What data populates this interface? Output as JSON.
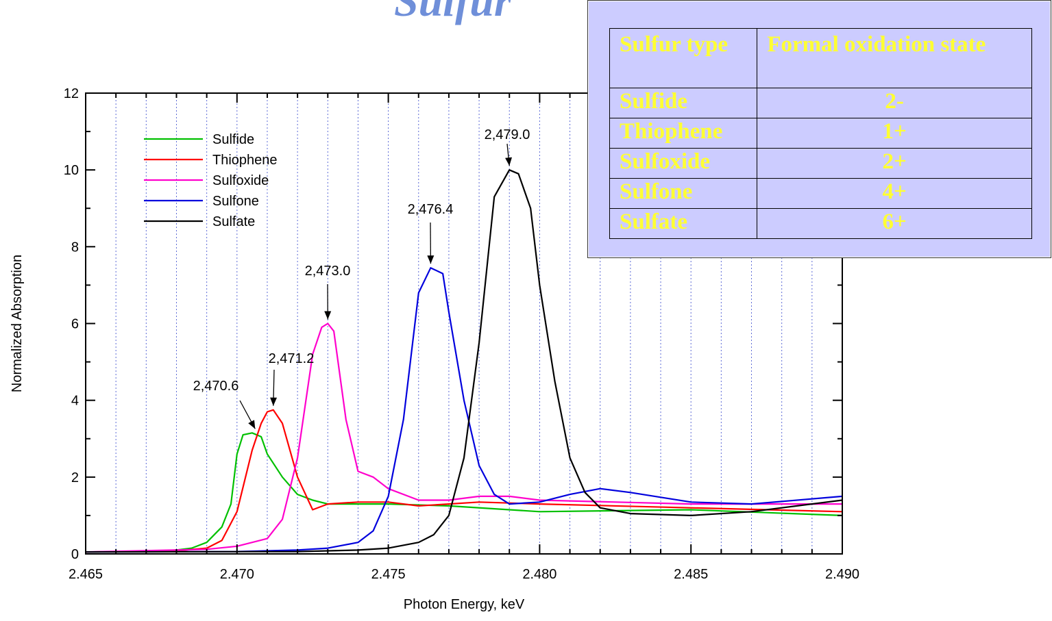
{
  "page_title": "Sulfur",
  "table": {
    "headers": [
      "Sulfur type",
      "Formal oxidation state"
    ],
    "rows": [
      {
        "type": "Sulfide",
        "state": "2-"
      },
      {
        "type": "Thiophene",
        "state": "1+"
      },
      {
        "type": "Sulfoxide",
        "state": "2+"
      },
      {
        "type": "Sulfone",
        "state": "4+"
      },
      {
        "type": "Sulfate",
        "state": "6+"
      }
    ],
    "text_color": "#ffff33",
    "background": "#ccccff"
  },
  "chart_data": {
    "type": "line",
    "xlabel": "Photon Energy, keV",
    "ylabel": "Normalized Absorption",
    "xlim": [
      2.465,
      2.49
    ],
    "ylim": [
      0,
      12
    ],
    "xticks": [
      "2.465",
      "2.470",
      "2.475",
      "2.480",
      "2.485",
      "2.490"
    ],
    "yticks": [
      "0",
      "2",
      "4",
      "6",
      "8",
      "10",
      "12"
    ],
    "grid": "vertical dotted every 0.001",
    "legend_position": "top-left",
    "series": [
      {
        "name": "Sulfide",
        "color": "#00c000",
        "x": [
          2.465,
          2.467,
          2.468,
          2.4685,
          2.469,
          2.4695,
          2.4698,
          2.47,
          2.4702,
          2.4705,
          2.4708,
          2.471,
          2.4715,
          2.472,
          2.4725,
          2.473,
          2.475,
          2.477,
          2.48,
          2.485,
          2.49
        ],
        "y": [
          0.05,
          0.07,
          0.1,
          0.15,
          0.3,
          0.7,
          1.3,
          2.6,
          3.1,
          3.15,
          3.05,
          2.6,
          2.0,
          1.55,
          1.4,
          1.3,
          1.3,
          1.25,
          1.1,
          1.15,
          1.0
        ]
      },
      {
        "name": "Thiophene",
        "color": "#ff0000",
        "x": [
          2.465,
          2.468,
          2.469,
          2.4695,
          2.47,
          2.4705,
          2.4708,
          2.471,
          2.4712,
          2.4715,
          2.472,
          2.4725,
          2.473,
          2.474,
          2.475,
          2.476,
          2.477,
          2.478,
          2.48,
          2.485,
          2.49
        ],
        "y": [
          0.05,
          0.08,
          0.15,
          0.35,
          1.1,
          2.7,
          3.4,
          3.7,
          3.75,
          3.4,
          2.0,
          1.15,
          1.3,
          1.35,
          1.35,
          1.25,
          1.3,
          1.35,
          1.3,
          1.2,
          1.1
        ]
      },
      {
        "name": "Sulfoxide",
        "color": "#ff00cc",
        "x": [
          2.465,
          2.469,
          2.47,
          2.471,
          2.4715,
          2.472,
          2.4725,
          2.4728,
          2.473,
          2.4732,
          2.4736,
          2.474,
          2.4745,
          2.475,
          2.476,
          2.477,
          2.478,
          2.479,
          2.48,
          2.485,
          2.49
        ],
        "y": [
          0.05,
          0.12,
          0.2,
          0.4,
          0.9,
          2.5,
          5.2,
          5.9,
          6.0,
          5.8,
          3.5,
          2.15,
          2.0,
          1.7,
          1.4,
          1.4,
          1.5,
          1.5,
          1.4,
          1.3,
          1.3
        ]
      },
      {
        "name": "Sulfone",
        "color": "#0000dd",
        "x": [
          2.465,
          2.47,
          2.472,
          2.473,
          2.474,
          2.4745,
          2.475,
          2.4755,
          2.476,
          2.4764,
          2.4768,
          2.477,
          2.4775,
          2.478,
          2.4785,
          2.479,
          2.48,
          2.481,
          2.482,
          2.483,
          2.485,
          2.487,
          2.49
        ],
        "y": [
          0.05,
          0.06,
          0.1,
          0.15,
          0.3,
          0.6,
          1.5,
          3.5,
          6.8,
          7.45,
          7.3,
          6.3,
          4.0,
          2.3,
          1.55,
          1.3,
          1.35,
          1.55,
          1.7,
          1.6,
          1.35,
          1.3,
          1.5
        ]
      },
      {
        "name": "Sulfate",
        "color": "#000000",
        "x": [
          2.465,
          2.472,
          2.474,
          2.475,
          2.476,
          2.4765,
          2.477,
          2.4775,
          2.478,
          2.4785,
          2.479,
          2.4793,
          2.4797,
          2.48,
          2.4805,
          2.481,
          2.4815,
          2.482,
          2.483,
          2.485,
          2.487,
          2.49
        ],
        "y": [
          0.05,
          0.06,
          0.1,
          0.15,
          0.3,
          0.5,
          1.0,
          2.5,
          5.5,
          9.3,
          10.0,
          9.9,
          9.0,
          7.0,
          4.5,
          2.5,
          1.6,
          1.2,
          1.05,
          1.0,
          1.1,
          1.4
        ]
      }
    ],
    "annotations": [
      {
        "text": "2,470.6",
        "x": 2.4706,
        "y": 3.15
      },
      {
        "text": "2,471.2",
        "x": 2.4712,
        "y": 3.75
      },
      {
        "text": "2,473.0",
        "x": 2.473,
        "y": 6.0
      },
      {
        "text": "2,476.4",
        "x": 2.4764,
        "y": 7.45
      },
      {
        "text": "2,479.0",
        "x": 2.479,
        "y": 10.0
      }
    ]
  }
}
